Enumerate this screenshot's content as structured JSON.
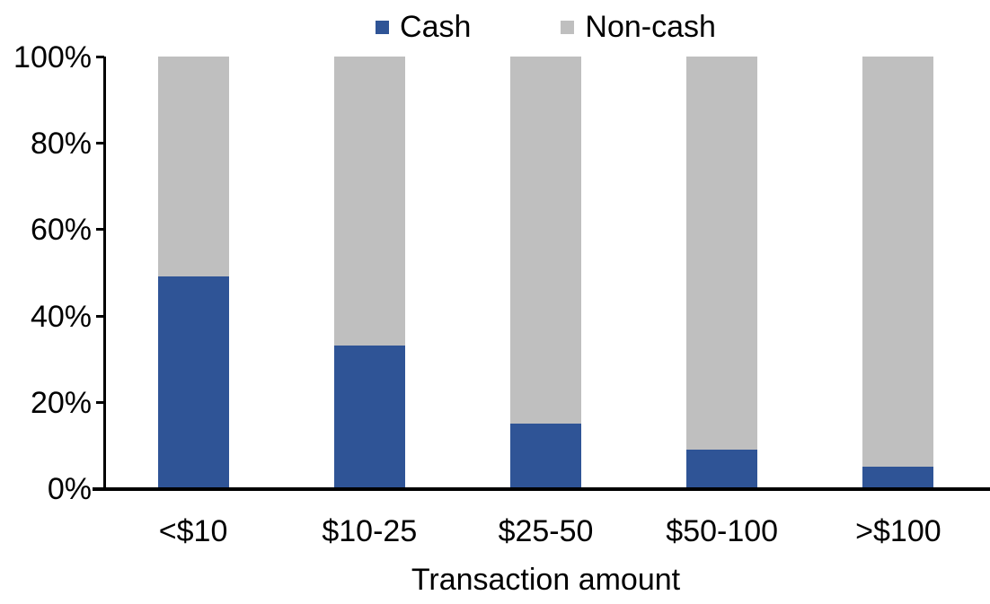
{
  "chart_data": {
    "type": "bar",
    "stacked": true,
    "percent_stacked": true,
    "title": "",
    "xlabel": "Transaction amount",
    "ylabel": "",
    "categories": [
      "<$10",
      "$10-25",
      "$25-50",
      "$50-100",
      ">$100"
    ],
    "series": [
      {
        "name": "Cash",
        "color": "#2F5496",
        "values": [
          49,
          33,
          15,
          9,
          5
        ]
      },
      {
        "name": "Non-cash",
        "color": "#BFBFBF",
        "values": [
          51,
          67,
          85,
          91,
          95
        ]
      }
    ],
    "ylim": [
      0,
      100
    ],
    "y_ticks": [
      {
        "label": "0%",
        "value": 0
      },
      {
        "label": "20%",
        "value": 20
      },
      {
        "label": "40%",
        "value": 40
      },
      {
        "label": "60%",
        "value": 60
      },
      {
        "label": "80%",
        "value": 80
      },
      {
        "label": "100%",
        "value": 100
      }
    ],
    "grid": false,
    "legend_position": "top",
    "axis_color": "#000000",
    "background_color": "#FFFFFF"
  }
}
